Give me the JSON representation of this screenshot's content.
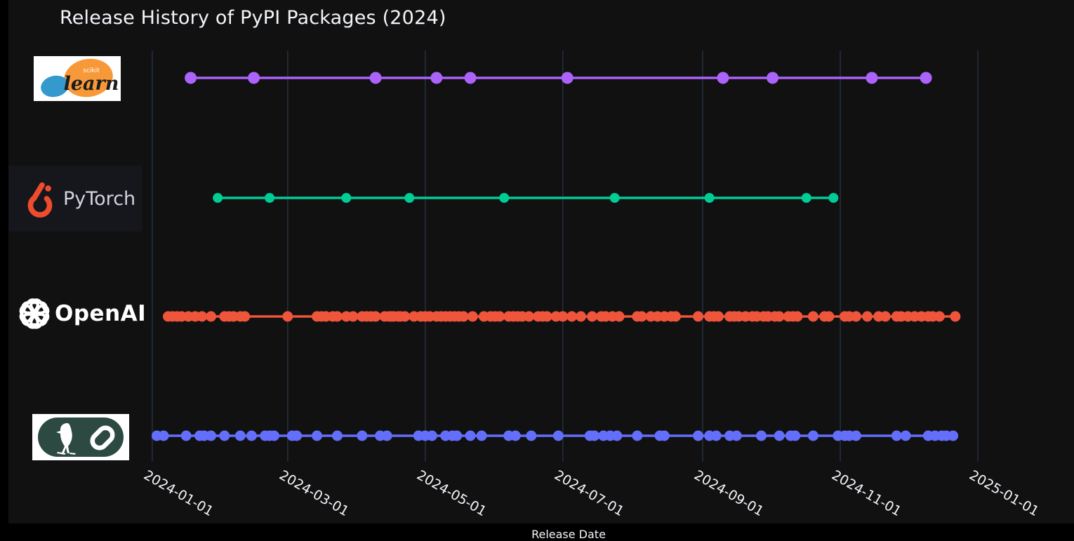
{
  "title": "Release History of PyPI Packages (2024)",
  "colors": {
    "background": "#111111",
    "grid": "#252e3b",
    "title_text": "#f2f5fa",
    "tick_text": "#f2f5fa"
  },
  "chart_data": {
    "type": "scatter",
    "title": "Release History of PyPI Packages (2024)",
    "xlabel": "Release Date",
    "x_range": [
      "2024-01-01",
      "2025-01-01"
    ],
    "x_ticks": [
      "2024-01-01",
      "2024-03-01",
      "2024-05-01",
      "2024-07-01",
      "2024-09-01",
      "2024-11-01",
      "2025-01-01"
    ],
    "tick_angle": 30,
    "grid": true,
    "legend_position": "none",
    "series": [
      {
        "name": "scikit-learn",
        "color": "#ab63fa",
        "dates": [
          "2024-01-18",
          "2024-02-15",
          "2024-04-09",
          "2024-05-06",
          "2024-05-21",
          "2024-07-03",
          "2024-09-10",
          "2024-10-02",
          "2024-11-15",
          "2024-12-09"
        ]
      },
      {
        "name": "PyTorch",
        "color": "#00cc96",
        "dates": [
          "2024-01-30",
          "2024-02-22",
          "2024-03-27",
          "2024-04-24",
          "2024-06-05",
          "2024-07-24",
          "2024-09-04",
          "2024-10-17",
          "2024-10-29"
        ]
      },
      {
        "name": "OpenAI",
        "color": "#ef553b",
        "dates": [
          "2024-01-08",
          "2024-01-10",
          "2024-01-12",
          "2024-01-14",
          "2024-01-17",
          "2024-01-20",
          "2024-01-23",
          "2024-01-27",
          "2024-02-02",
          "2024-02-04",
          "2024-02-06",
          "2024-02-09",
          "2024-02-11",
          "2024-03-01",
          "2024-03-14",
          "2024-03-16",
          "2024-03-18",
          "2024-03-21",
          "2024-03-23",
          "2024-03-27",
          "2024-03-30",
          "2024-04-03",
          "2024-04-05",
          "2024-04-07",
          "2024-04-09",
          "2024-04-13",
          "2024-04-15",
          "2024-04-16",
          "2024-04-17",
          "2024-04-19",
          "2024-04-20",
          "2024-04-22",
          "2024-04-26",
          "2024-04-29",
          "2024-05-01",
          "2024-05-03",
          "2024-05-06",
          "2024-05-08",
          "2024-05-10",
          "2024-05-12",
          "2024-05-14",
          "2024-05-16",
          "2024-05-18",
          "2024-05-22",
          "2024-05-27",
          "2024-05-30",
          "2024-06-01",
          "2024-06-03",
          "2024-06-07",
          "2024-06-09",
          "2024-06-11",
          "2024-06-13",
          "2024-06-16",
          "2024-06-20",
          "2024-06-22",
          "2024-06-24",
          "2024-06-28",
          "2024-07-01",
          "2024-07-05",
          "2024-07-09",
          "2024-07-14",
          "2024-07-18",
          "2024-07-20",
          "2024-07-23",
          "2024-07-26",
          "2024-08-03",
          "2024-08-05",
          "2024-08-09",
          "2024-08-12",
          "2024-08-15",
          "2024-08-18",
          "2024-08-20",
          "2024-08-30",
          "2024-09-04",
          "2024-09-06",
          "2024-09-08",
          "2024-09-13",
          "2024-09-15",
          "2024-09-17",
          "2024-09-20",
          "2024-09-23",
          "2024-09-25",
          "2024-09-28",
          "2024-09-30",
          "2024-10-03",
          "2024-10-05",
          "2024-10-09",
          "2024-10-11",
          "2024-10-13",
          "2024-10-20",
          "2024-10-25",
          "2024-10-27",
          "2024-11-03",
          "2024-11-05",
          "2024-11-08",
          "2024-11-13",
          "2024-11-18",
          "2024-11-21",
          "2024-11-26",
          "2024-11-28",
          "2024-12-01",
          "2024-12-04",
          "2024-12-07",
          "2024-12-10",
          "2024-12-12",
          "2024-12-15",
          "2024-12-22"
        ]
      },
      {
        "name": "LangChain",
        "color": "#636efa",
        "dates": [
          "2024-01-03",
          "2024-01-06",
          "2024-01-16",
          "2024-01-22",
          "2024-01-24",
          "2024-01-27",
          "2024-02-02",
          "2024-02-09",
          "2024-02-14",
          "2024-02-20",
          "2024-02-22",
          "2024-02-24",
          "2024-03-03",
          "2024-03-05",
          "2024-03-14",
          "2024-03-23",
          "2024-04-03",
          "2024-04-11",
          "2024-04-14",
          "2024-04-28",
          "2024-05-01",
          "2024-05-04",
          "2024-05-10",
          "2024-05-13",
          "2024-05-15",
          "2024-05-21",
          "2024-05-26",
          "2024-06-07",
          "2024-06-10",
          "2024-06-17",
          "2024-06-29",
          "2024-07-13",
          "2024-07-15",
          "2024-07-19",
          "2024-07-22",
          "2024-07-25",
          "2024-08-03",
          "2024-08-13",
          "2024-08-15",
          "2024-08-30",
          "2024-09-04",
          "2024-09-07",
          "2024-09-13",
          "2024-09-16",
          "2024-09-27",
          "2024-10-05",
          "2024-10-10",
          "2024-10-12",
          "2024-10-20",
          "2024-10-31",
          "2024-11-03",
          "2024-11-05",
          "2024-11-08",
          "2024-11-26",
          "2024-11-30",
          "2024-12-10",
          "2024-12-13",
          "2024-12-16",
          "2024-12-18",
          "2024-12-21"
        ]
      }
    ]
  },
  "logos": {
    "sklearn": {
      "label_small": "scikit",
      "label_script": "learn",
      "orange": "#f89939",
      "blue": "#3499cd",
      "text_dark": "#1c1c1c"
    },
    "pytorch": {
      "label": "PyTorch",
      "flame_color": "#ee4c2c"
    },
    "openai": {
      "label": "OpenAI",
      "mark_color": "#ffffff"
    },
    "langchain": {
      "pill_color": "#2c4a42",
      "mark_color": "#ffffff"
    }
  }
}
